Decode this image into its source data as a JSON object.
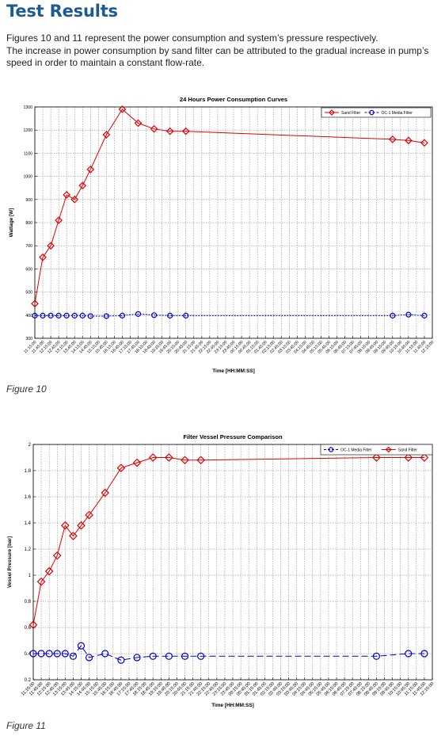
{
  "page": {
    "title": "Test Results",
    "paragraph_line1": "Figures 10 and 11 represent the power consumption and system’s pressure respectively.",
    "paragraph_line2": "The increase in power consumption by sand filter can be attributed to the gradual increase in pump’s speed in order to maintain a constant flow-rate.",
    "caption_fig10": "Figure 10",
    "caption_fig11": "Figure 11"
  },
  "colors": {
    "title": "#1f5a8f",
    "red_series": "#e00000",
    "blue_series": "#0000d0"
  },
  "chart_data": [
    {
      "type": "line",
      "title": "24 Hours Power Consumption Curves",
      "xlabel": "Time [HH:MM:SS]",
      "ylabel": "Wattage [W]",
      "ylim": [
        300,
        1300
      ],
      "yticks": [
        300,
        400,
        500,
        600,
        700,
        800,
        900,
        1000,
        1100,
        1200,
        1300
      ],
      "grid": true,
      "legend_position": "top-right",
      "legend": [
        "Sand Filter",
        "OC-1 Media Filter"
      ],
      "x_tick_labels": [
        "11:15:00",
        "11:45:00",
        "12:15:00",
        "12:45:00",
        "13:15:00",
        "13:45:00",
        "14:15:00",
        "14:45:00",
        "15:15:00",
        "15:45:00",
        "16:15:00",
        "16:45:00",
        "17:15:00",
        "17:45:00",
        "18:15:00",
        "18:45:00",
        "19:15:00",
        "19:45:00",
        "20:15:00",
        "20:45:00",
        "21:15:00",
        "21:45:00",
        "22:15:00",
        "22:45:00",
        "23:15:00",
        "23:45:00",
        "00:15:00",
        "00:45:00",
        "01:15:00",
        "01:45:00",
        "02:15:00",
        "02:45:00",
        "03:15:00",
        "03:45:00",
        "04:15:00",
        "04:45:00",
        "05:15:00",
        "05:45:00",
        "06:15:00",
        "06:45:00",
        "07:15:00",
        "07:45:00",
        "08:15:00",
        "08:45:00",
        "09:15:00",
        "09:45:00",
        "10:15:00",
        "10:45:00",
        "11:15:00",
        "11:45:00",
        "12:15:00"
      ],
      "series": [
        {
          "name": "Sand Filter",
          "color": "#e00000",
          "marker": "diamond",
          "line": "solid",
          "x": [
            "11:15:00",
            "11:45:00",
            "12:15:00",
            "12:45:00",
            "13:15:00",
            "13:45:00",
            "14:15:00",
            "14:45:00",
            "15:45:00",
            "16:45:00",
            "17:45:00",
            "18:45:00",
            "19:45:00",
            "20:45:00",
            "09:45:00",
            "10:45:00",
            "11:45:00"
          ],
          "values": [
            450,
            650,
            700,
            810,
            920,
            900,
            960,
            1030,
            1180,
            1290,
            1230,
            1205,
            1195,
            1195,
            1160,
            1155,
            1145
          ]
        },
        {
          "name": "OC-1 Media Filter",
          "color": "#0000d0",
          "marker": "circle",
          "line": "dashed",
          "x": [
            "11:15:00",
            "11:45:00",
            "12:15:00",
            "12:45:00",
            "13:15:00",
            "13:45:00",
            "14:15:00",
            "14:45:00",
            "15:45:00",
            "16:45:00",
            "17:45:00",
            "18:45:00",
            "19:45:00",
            "20:45:00",
            "09:45:00",
            "10:45:00",
            "11:45:00"
          ],
          "values": [
            398,
            398,
            398,
            398,
            398,
            398,
            398,
            396,
            396,
            398,
            405,
            400,
            398,
            398,
            398,
            402,
            398
          ]
        }
      ]
    },
    {
      "type": "line",
      "title": "Filter Vessel Pressure Comparison",
      "xlabel": "Time [HH:MM:SS]",
      "ylabel": "Vessel Pressure [bar]",
      "ylim": [
        0.2,
        2
      ],
      "yticks": [
        0.2,
        0.4,
        0.6,
        0.8,
        1,
        1.2,
        1.4,
        1.6,
        1.8,
        2
      ],
      "grid": true,
      "legend_position": "top-right",
      "legend": [
        "OC-1 Media Filter",
        "Sand Filter"
      ],
      "x_tick_labels": [
        "11:15:00",
        "11:45:00",
        "12:15:00",
        "12:45:00",
        "13:15:00",
        "13:45:00",
        "14:15:00",
        "14:45:00",
        "15:15:00",
        "15:45:00",
        "16:15:00",
        "16:45:00",
        "17:15:00",
        "17:45:00",
        "18:15:00",
        "18:45:00",
        "19:15:00",
        "19:45:00",
        "20:15:00",
        "20:45:00",
        "21:15:00",
        "21:45:00",
        "22:15:00",
        "22:45:00",
        "23:15:00",
        "23:45:00",
        "00:15:00",
        "00:45:00",
        "01:15:00",
        "01:45:00",
        "02:15:00",
        "02:45:00",
        "03:15:00",
        "03:45:00",
        "04:15:00",
        "04:45:00",
        "05:15:00",
        "05:45:00",
        "06:15:00",
        "06:45:00",
        "07:15:00",
        "07:45:00",
        "08:15:00",
        "08:45:00",
        "09:15:00",
        "09:45:00",
        "10:15:00",
        "10:45:00",
        "11:15:00",
        "11:45:00",
        "12:15:00"
      ],
      "series": [
        {
          "name": "OC-1 Media Filter",
          "color": "#0000d0",
          "marker": "circle",
          "line": "dashed",
          "x": [
            "11:15:00",
            "11:45:00",
            "12:15:00",
            "12:45:00",
            "13:15:00",
            "13:45:00",
            "14:15:00",
            "14:45:00",
            "15:45:00",
            "16:45:00",
            "17:45:00",
            "18:45:00",
            "19:45:00",
            "20:45:00",
            "21:45:00",
            "08:45:00",
            "09:45:00",
            "10:45:00",
            "11:15:00",
            "11:45:00"
          ],
          "values": [
            0.4,
            0.4,
            0.4,
            0.4,
            0.4,
            0.38,
            0.46,
            0.37,
            0.4,
            0.35,
            0.37,
            0.38,
            0.38,
            0.38,
            0.38,
            0.38,
            null,
            0.4,
            null,
            0.4
          ],
          "markers_at": [
            "11:15:00",
            "11:45:00",
            "12:15:00",
            "12:45:00",
            "13:15:00",
            "13:45:00",
            "14:15:00",
            "14:45:00",
            "15:45:00",
            "16:45:00",
            "17:45:00",
            "18:45:00",
            "19:45:00",
            "20:45:00",
            "21:45:00",
            "08:45:00",
            "10:45:00",
            "11:45:00"
          ]
        },
        {
          "name": "Sand Filter",
          "color": "#e00000",
          "marker": "diamond",
          "line": "solid",
          "x": [
            "11:15:00",
            "11:45:00",
            "12:15:00",
            "12:45:00",
            "13:15:00",
            "13:45:00",
            "14:15:00",
            "14:45:00",
            "15:45:00",
            "16:45:00",
            "17:45:00",
            "18:45:00",
            "19:45:00",
            "20:45:00",
            "21:45:00",
            "08:45:00",
            "09:45:00",
            "10:45:00",
            "11:45:00"
          ],
          "values": [
            0.62,
            0.95,
            1.03,
            1.15,
            1.38,
            1.3,
            1.38,
            1.46,
            1.63,
            1.82,
            1.86,
            1.9,
            1.9,
            1.88,
            1.88,
            1.9,
            null,
            1.9,
            1.9
          ]
        }
      ]
    }
  ]
}
